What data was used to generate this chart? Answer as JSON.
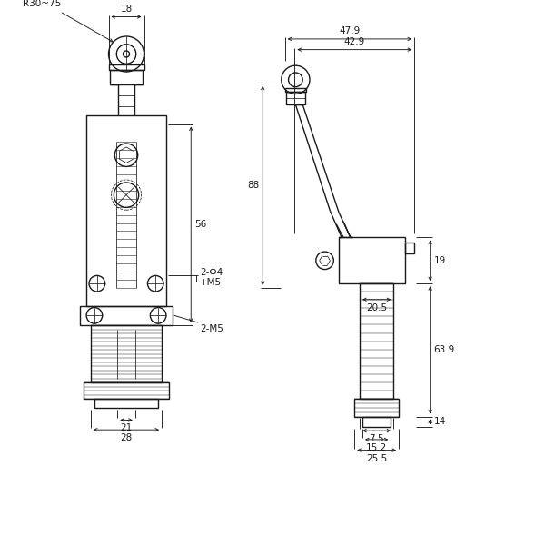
{
  "bg_color": "#ffffff",
  "line_color": "#1a1a1a",
  "dim_color": "#1a1a1a",
  "lw": 1.0,
  "tlw": 0.55,
  "dlw": 0.65,
  "fs": 7.5,
  "annotations": {
    "dim_18": "18",
    "dim_R30_75": "R30~75",
    "dim_2phi4": "2-Φ4",
    "dim_M5": "+M5",
    "dim_56": "56",
    "dim_21": "21",
    "dim_28": "28",
    "dim_2M5": "2-M5",
    "dim_47_9": "47.9",
    "dim_42_9": "42.9",
    "dim_88": "88",
    "dim_19": "19",
    "dim_20_5": "20.5",
    "dim_63_9": "63.9",
    "dim_7_5": "7.5",
    "dim_14": "14",
    "dim_15_2": "15.2",
    "dim_25_5": "25.5"
  }
}
